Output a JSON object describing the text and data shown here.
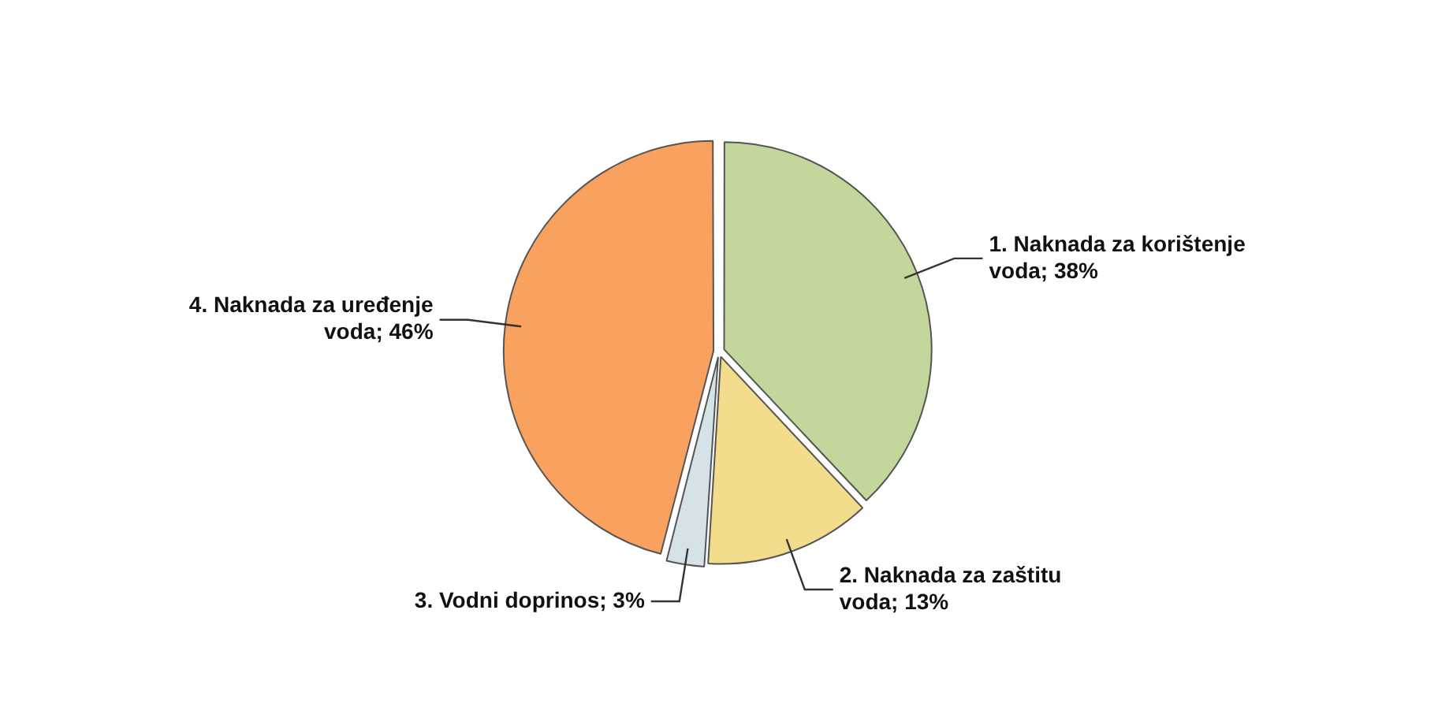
{
  "chart_data": {
    "type": "pie",
    "categories": [
      "1. Naknada za korištenje voda",
      "2. Naknada za zaštitu voda",
      "3. Vodni doprinos",
      "4. Naknada za uređenje voda"
    ],
    "values": [
      38,
      13,
      3,
      46
    ],
    "value_labels": [
      "38%",
      "13%",
      "3%",
      "46%"
    ],
    "colors": [
      "#c3d69b",
      "#f3dc8c",
      "#d5e3e8",
      "#f9a15e"
    ],
    "legend": false
  }
}
